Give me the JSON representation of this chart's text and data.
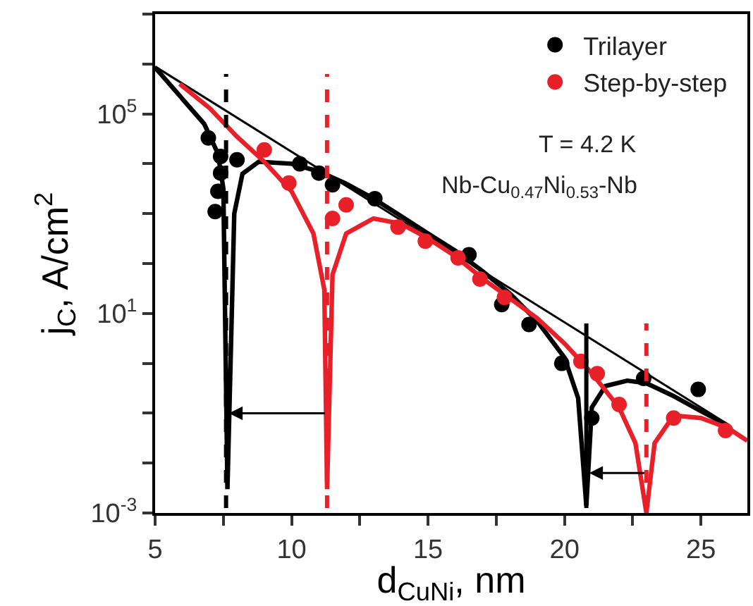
{
  "chart_data": {
    "type": "scatter",
    "xlabel": "d$_{CuNi}$, nm",
    "ylabel": "j$_{C}$, A/cm$^{2}$",
    "annotations": [
      "T = 4.2 K",
      "Nb-Cu$_{0.47}$Ni$_{0.53}$-Nb"
    ],
    "log": "y",
    "grid": false,
    "legend": "top right",
    "marker": "circle",
    "xlim": [
      5,
      26.7
    ],
    "xticks": [
      5,
      {
        "value": 7.5,
        "label": null
      },
      10,
      {
        "value": 12.5,
        "label": null
      },
      15,
      {
        "value": 17.5,
        "label": null
      },
      20,
      {
        "value": 22.5,
        "label": null
      },
      25
    ],
    "ylim": [
      0.001,
      10000000
    ],
    "yticks": [
      {
        "value": 0.001,
        "label": "10$^{-3}$"
      },
      {
        "value": 0.01,
        "label": null
      },
      {
        "value": 0.1,
        "label": null
      },
      {
        "value": 1,
        "label": null
      },
      {
        "value": 10,
        "label": "10$^{1}$"
      },
      {
        "value": 100,
        "label": null
      },
      {
        "value": 1000,
        "label": null
      },
      {
        "value": 10000,
        "label": null
      },
      {
        "value": 100000,
        "label": "10$^{5}$"
      },
      {
        "value": 1000000,
        "label": null
      },
      {
        "value": 10000000,
        "label": null
      }
    ],
    "series": [
      {
        "type": "line",
        "marker": "none",
        "color": "#000000",
        "x": [
          5,
          26
        ],
        "values": [
          890000,
          0.059
        ]
      },
      {
        "type": "line",
        "marker": "none",
        "color": "#000000",
        "x": [
          5.0,
          6.0,
          6.8,
          7.3,
          7.5,
          7.65,
          7.9,
          8.2,
          8.8,
          10,
          11,
          12,
          13,
          14,
          15,
          16,
          17,
          18,
          19,
          20,
          20.5,
          20.8,
          21.0,
          21.5,
          22.3,
          23,
          24,
          25,
          26
        ],
        "values": [
          850000,
          200000,
          63000,
          16000,
          3200,
          0.003,
          1000,
          6300,
          11000,
          10000,
          7000,
          4000,
          2000,
          900,
          400,
          180,
          70,
          25,
          7,
          1.3,
          0.2,
          0.0014,
          0.13,
          0.35,
          0.45,
          0.4,
          0.22,
          0.11,
          0.056
        ]
      },
      {
        "type": "line",
        "marker": "none",
        "color": "#e8202a",
        "x": [
          5.9,
          7,
          8,
          9,
          10,
          10.8,
          11.2,
          11.3,
          11.5,
          12,
          13,
          14,
          15,
          16,
          17,
          18,
          19,
          20,
          21,
          22,
          22.6,
          23.0,
          23.3,
          24,
          25,
          26,
          26.7
        ],
        "values": [
          400000,
          130000,
          35000,
          11000,
          2800,
          400,
          30,
          0.003,
          60,
          400,
          800,
          630,
          320,
          140,
          50,
          20,
          8,
          2.5,
          0.63,
          0.13,
          0.025,
          0.001,
          0.025,
          0.09,
          0.08,
          0.05,
          0.028
        ]
      },
      {
        "name": "Trilayer",
        "color": "#000000",
        "x": [
          6.95,
          7.4,
          7.4,
          7.3,
          7.2,
          8.0,
          10.3,
          11.0,
          11.5,
          13.05,
          16.5,
          17.7,
          18.7,
          19.9,
          21.0,
          22.9,
          24.9
        ],
        "values": [
          33000,
          14000,
          6500,
          2800,
          1100,
          12000,
          10000,
          6500,
          3800,
          2000,
          150,
          15,
          6,
          1,
          0.08,
          0.5,
          0.3
        ]
      },
      {
        "name": "Step-by-step",
        "color": "#e8202a",
        "x": [
          9.0,
          9.9,
          11.5,
          12.0,
          13.9,
          14.9,
          16.1,
          16.9,
          17.8,
          20.6,
          21.2,
          22.0,
          24.0,
          25.9
        ],
        "values": [
          19000,
          4100,
          800,
          1500,
          540,
          280,
          130,
          49,
          21,
          1.1,
          0.62,
          0.15,
          0.08,
          0.045
        ]
      }
    ],
    "ref_lines": [
      {
        "axis": "x",
        "value": 7.6,
        "color": "#000000",
        "line_style": "dashed"
      },
      {
        "axis": "x",
        "value": 11.3,
        "color": "#e8202a",
        "line_style": "dashed"
      },
      {
        "axis": "x",
        "value": 20.8,
        "color": "#000000",
        "line_style": "solid"
      },
      {
        "axis": "x",
        "value": 23.0,
        "color": "#e8202a",
        "line_style": "dashed"
      }
    ]
  }
}
